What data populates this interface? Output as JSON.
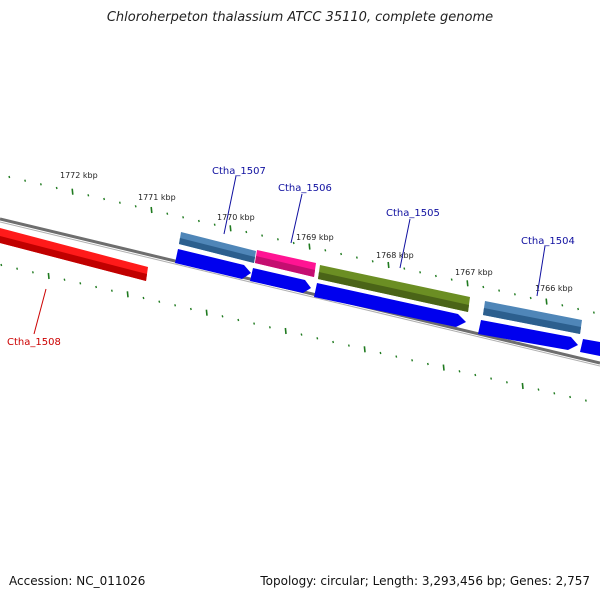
{
  "title": "Chloroherpeton thalassium ATCC 35110, complete genome",
  "footer": {
    "accession": "Accession: NC_011026",
    "summary": "Topology: circular; Length: 3,293,456 bp; Genes: 2,757"
  },
  "colors": {
    "backbone": "#7a7a7a",
    "ticks": "#1f7a1f",
    "cds": "#0000ee",
    "label_blue": "#1010a0",
    "label_red": "#cc0000"
  },
  "scale_labels": [
    "1772 kbp",
    "1771 kbp",
    "1770 kbp",
    "1769 kbp",
    "1768 kbp",
    "1767 kbp",
    "1766 kbp"
  ],
  "genes": [
    {
      "id": "Ctha_1508",
      "color": "#ff1a1a",
      "label_color": "#cc0000"
    },
    {
      "id": "Ctha_1507",
      "color": "#4f86b8",
      "label_color": "#1010a0"
    },
    {
      "id": "Ctha_1506",
      "color": "#ff1493",
      "label_color": "#1010a0"
    },
    {
      "id": "Ctha_1505",
      "color": "#6b8e23",
      "label_color": "#1010a0"
    },
    {
      "id": "Ctha_1504",
      "color": "#4f86b8",
      "label_color": "#1010a0"
    }
  ]
}
